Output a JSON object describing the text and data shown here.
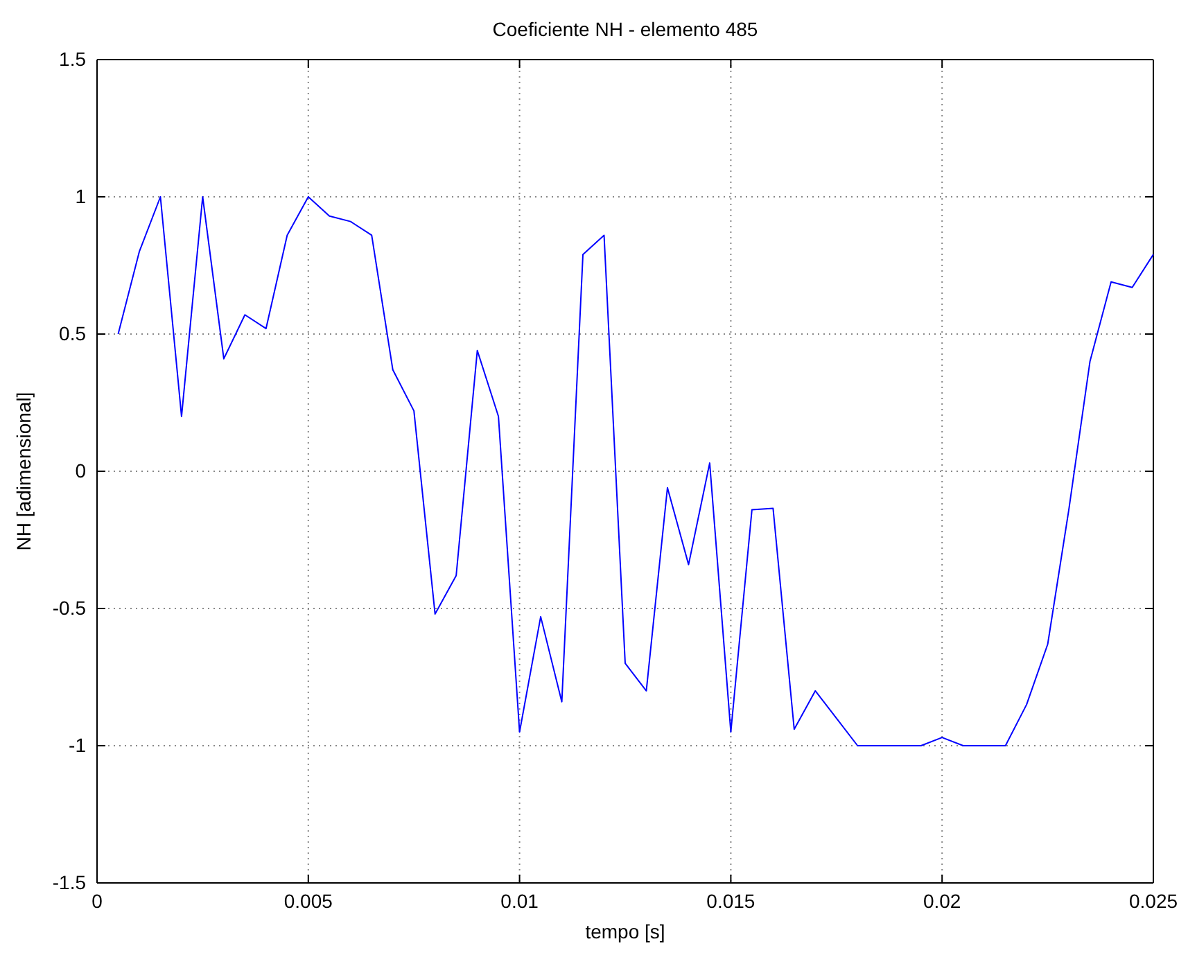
{
  "chart_data": {
    "type": "line",
    "title": "Coeficiente NH - elemento 485",
    "xlabel": "tempo [s]",
    "ylabel": "NH [adimensional]",
    "x": [
      0.0005,
      0.001,
      0.0015,
      0.002,
      0.0025,
      0.003,
      0.0035,
      0.004,
      0.0045,
      0.005,
      0.0055,
      0.006,
      0.0065,
      0.007,
      0.0075,
      0.008,
      0.0085,
      0.009,
      0.0095,
      0.01,
      0.0105,
      0.011,
      0.0115,
      0.012,
      0.0125,
      0.013,
      0.0135,
      0.014,
      0.0145,
      0.015,
      0.0155,
      0.016,
      0.0165,
      0.017,
      0.0175,
      0.018,
      0.0185,
      0.019,
      0.0195,
      0.02,
      0.0205,
      0.021,
      0.0215,
      0.022,
      0.0225,
      0.023,
      0.0235,
      0.024,
      0.0245,
      0.025
    ],
    "series": [
      {
        "color": "#0000ff",
        "values": [
          0.5,
          0.8,
          1.0,
          0.2,
          1.0,
          0.41,
          0.57,
          0.52,
          0.86,
          1.0,
          0.93,
          0.91,
          0.86,
          0.37,
          0.22,
          -0.52,
          -0.38,
          0.44,
          0.2,
          -0.95,
          -0.53,
          -0.84,
          0.79,
          0.86,
          -0.7,
          -0.8,
          -0.06,
          -0.34,
          0.03,
          -0.95,
          -0.14,
          -0.135,
          -0.94,
          -0.8,
          -0.9,
          -1.0,
          -1.0,
          -1.0,
          -1.0,
          -0.97,
          -1.0,
          -1.0,
          -1.0,
          -0.85,
          -0.63,
          -0.14,
          0.4,
          0.69,
          0.67,
          0.79
        ]
      }
    ],
    "xlim": [
      0,
      0.025
    ],
    "xticks": [
      0,
      0.005,
      0.01,
      0.015,
      0.02,
      0.025
    ],
    "ylim": [
      -1.5,
      1.5
    ],
    "yticks": [
      -1.5,
      -1,
      -0.5,
      0,
      0.5,
      1,
      1.5
    ],
    "grid": true,
    "line_style": "solid",
    "marker": "none"
  }
}
